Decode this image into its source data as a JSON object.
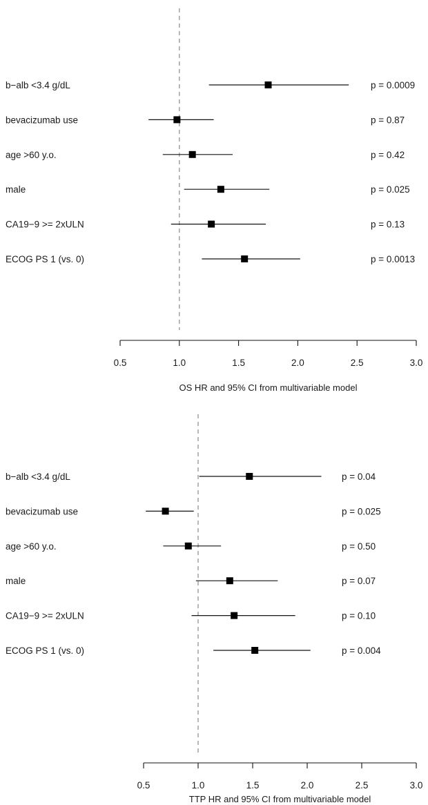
{
  "chart_data": [
    {
      "type": "scatter",
      "subtype": "forest-plot",
      "xlabel": "OS HR and 95% CI from multivariable model",
      "xlim": [
        0.5,
        3.0
      ],
      "xticks": [
        "0.5",
        "1.0",
        "1.5",
        "2.0",
        "2.5",
        "3.0"
      ],
      "reference_line": 1.0,
      "grid": false,
      "rows": [
        {
          "label": "b−alb <3.4 g/dL",
          "hr": 1.75,
          "lo": 1.25,
          "hi": 2.43,
          "p": "p = 0.0009"
        },
        {
          "label": "bevacizumab use",
          "hr": 0.98,
          "lo": 0.74,
          "hi": 1.29,
          "p": "p = 0.87"
        },
        {
          "label": "age >60 y.o.",
          "hr": 1.11,
          "lo": 0.86,
          "hi": 1.45,
          "p": "p = 0.42"
        },
        {
          "label": "male",
          "hr": 1.35,
          "lo": 1.04,
          "hi": 1.76,
          "p": "p = 0.025"
        },
        {
          "label": "CA19−9 >= 2xULN",
          "hr": 1.27,
          "lo": 0.93,
          "hi": 1.73,
          "p": "p = 0.13"
        },
        {
          "label": "ECOG PS 1 (vs. 0)",
          "hr": 1.55,
          "lo": 1.19,
          "hi": 2.02,
          "p": "p = 0.0013"
        }
      ]
    },
    {
      "type": "scatter",
      "subtype": "forest-plot",
      "xlabel": "TTP HR and 95% CI from multivariable model",
      "xlim": [
        0.5,
        3.0
      ],
      "xticks": [
        "0.5",
        "1.0",
        "1.5",
        "2.0",
        "2.5",
        "3.0"
      ],
      "reference_line": 1.0,
      "grid": false,
      "rows": [
        {
          "label": "b−alb <3.4 g/dL",
          "hr": 1.47,
          "lo": 1.01,
          "hi": 2.13,
          "p": "p = 0.04"
        },
        {
          "label": "bevacizumab use",
          "hr": 0.7,
          "lo": 0.52,
          "hi": 0.96,
          "p": "p = 0.025"
        },
        {
          "label": "age >60 y.o.",
          "hr": 0.91,
          "lo": 0.68,
          "hi": 1.21,
          "p": "p = 0.50"
        },
        {
          "label": "male",
          "hr": 1.29,
          "lo": 0.98,
          "hi": 1.73,
          "p": "p = 0.07"
        },
        {
          "label": "CA19−9 >= 2xULN",
          "hr": 1.33,
          "lo": 0.94,
          "hi": 1.89,
          "p": "p = 0.10"
        },
        {
          "label": "ECOG PS 1 (vs. 0)",
          "hr": 1.52,
          "lo": 1.14,
          "hi": 2.03,
          "p": "p = 0.004"
        }
      ]
    }
  ]
}
